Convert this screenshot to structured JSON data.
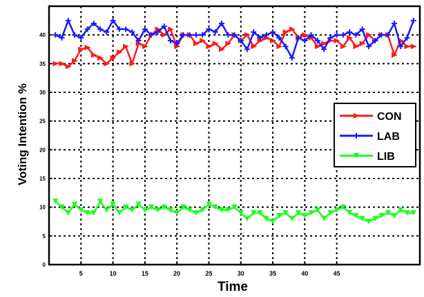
{
  "chart_data": {
    "type": "line",
    "title": "",
    "xlabel": "Time",
    "ylabel": "Voting Intention %",
    "xlim": [
      0,
      58
    ],
    "ylim": [
      0,
      45
    ],
    "xticks": [
      5,
      10,
      15,
      20,
      25,
      30,
      35,
      40,
      45
    ],
    "xtick_labels": [
      "5",
      "10",
      "15",
      "20",
      "25",
      "30",
      "35",
      "40",
      "45"
    ],
    "yticks": [
      0,
      5,
      10,
      15,
      20,
      25,
      30,
      35,
      40
    ],
    "ytick_labels": [
      "0",
      "5",
      "10",
      "15",
      "20",
      "25",
      "30",
      "35",
      "40"
    ],
    "grid": true,
    "legend_position": "right",
    "series": [
      {
        "name": "CON",
        "color": "#ff1a1a",
        "marker": "triangle-right",
        "x": [
          1,
          2,
          3,
          4,
          5,
          6,
          7,
          8,
          9,
          10,
          11,
          12,
          13,
          14,
          15,
          16,
          17,
          18,
          19,
          20,
          21,
          22,
          23,
          24,
          25,
          26,
          27,
          28,
          29,
          30,
          31,
          32,
          33,
          34,
          35,
          36,
          37,
          38,
          39,
          40,
          41,
          42,
          43,
          44,
          45,
          46,
          47,
          48,
          49,
          50,
          51,
          52,
          53,
          54,
          55,
          56,
          57
        ],
        "values": [
          35,
          35,
          34.5,
          35.5,
          37.5,
          37.8,
          36.5,
          36,
          35,
          36,
          37,
          38,
          35,
          38.5,
          38,
          40,
          41,
          40,
          41,
          38,
          40,
          40,
          38.5,
          39,
          38,
          38.5,
          37.5,
          38.5,
          40,
          39,
          40,
          38,
          39,
          39.5,
          39,
          38,
          40.5,
          41,
          39.5,
          40,
          39.5,
          38,
          38.5,
          39,
          39,
          38,
          39.5,
          38,
          38.5,
          40,
          39,
          40,
          40,
          36.5,
          39,
          38,
          38
        ]
      },
      {
        "name": "LAB",
        "color": "#1a1aff",
        "marker": "plus",
        "x": [
          1,
          2,
          3,
          4,
          5,
          6,
          7,
          8,
          9,
          10,
          11,
          12,
          13,
          14,
          15,
          16,
          17,
          18,
          19,
          20,
          21,
          22,
          23,
          24,
          25,
          26,
          27,
          28,
          29,
          30,
          31,
          32,
          33,
          34,
          35,
          36,
          37,
          38,
          39,
          40,
          41,
          42,
          43,
          44,
          45,
          46,
          47,
          48,
          49,
          50,
          51,
          52,
          53,
          54,
          55,
          56,
          57
        ],
        "values": [
          40,
          39.5,
          42.5,
          40,
          39.5,
          41,
          42,
          41,
          40.5,
          42.5,
          41,
          41,
          40.5,
          39,
          41,
          40,
          40.5,
          41.5,
          39,
          38.5,
          40,
          40,
          40,
          40,
          41,
          40.5,
          42,
          40,
          40,
          39,
          37.5,
          40.5,
          39.5,
          40,
          40.5,
          39.5,
          38,
          36,
          39.5,
          39,
          40,
          39,
          37.5,
          39.5,
          40,
          40,
          40.5,
          40,
          41,
          38,
          39,
          40,
          40,
          42,
          38,
          39.5,
          42.5
        ]
      },
      {
        "name": "LIB",
        "color": "#1aff1a",
        "marker": "triangle-down",
        "x": [
          1,
          2,
          3,
          4,
          5,
          6,
          7,
          8,
          9,
          10,
          11,
          12,
          13,
          14,
          15,
          16,
          17,
          18,
          19,
          20,
          21,
          22,
          23,
          24,
          25,
          26,
          27,
          28,
          29,
          30,
          31,
          32,
          33,
          34,
          35,
          36,
          37,
          38,
          39,
          40,
          41,
          42,
          43,
          44,
          45,
          46,
          47,
          48,
          49,
          50,
          51,
          52,
          53,
          54,
          55,
          56,
          57
        ],
        "values": [
          11,
          10,
          9,
          10.5,
          9.5,
          9,
          9,
          11,
          9.5,
          10.5,
          9,
          10,
          9.5,
          10.5,
          9.5,
          10,
          9.5,
          10,
          9.5,
          9,
          10,
          9.5,
          9,
          9.5,
          10.5,
          10,
          9.5,
          9.5,
          10,
          9,
          8,
          9,
          9,
          8,
          7.5,
          8.5,
          9,
          8,
          9,
          8.5,
          9,
          9.5,
          8,
          9,
          9.5,
          10,
          9,
          8.5,
          8,
          7.5,
          8,
          8.5,
          9,
          8.5,
          9.5,
          9,
          9
        ]
      }
    ]
  }
}
